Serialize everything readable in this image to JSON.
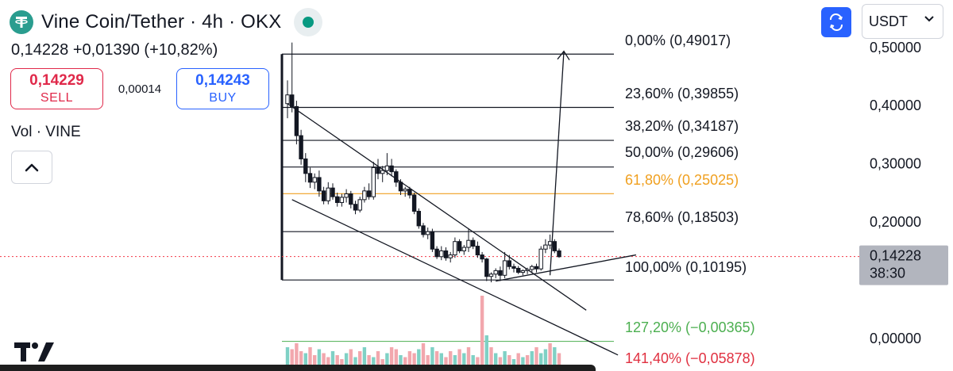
{
  "header": {
    "title": "Vine Coin/Tether · 4h · OKX",
    "last_price": "0,14228",
    "change": "+0,01390",
    "change_pct": "(+10,82%)"
  },
  "trade": {
    "sell_price": "0,14229",
    "sell_label": "SELL",
    "spread": "0,00014",
    "buy_price": "0,14243",
    "buy_label": "BUY"
  },
  "volume_label": "Vol · VINE",
  "currency": "USDT",
  "icons": [
    "tether-logo-icon",
    "status-dot-icon",
    "chevron-up-icon",
    "camera-icon",
    "chevron-down-icon",
    "tradingview-logo-icon"
  ],
  "colors": {
    "up": "#089981",
    "down": "#f23645",
    "sell": "#e0294a",
    "buy": "#2962ff",
    "fib_618": "#f0a020",
    "fib_ext1": "#4caf50",
    "fib_ext2": "#e03040",
    "price_tag": "#b2b5be",
    "vol_up": "#7fd1c5",
    "vol_down": "#f2a7ad"
  },
  "chart_data": {
    "type": "candlestick",
    "y_axis": {
      "ticks": [
        0.5,
        0.4,
        0.3,
        0.2,
        0.0
      ],
      "tick_labels": [
        "0,50000",
        "0,40000",
        "0,30000",
        "0,20000",
        "0,00000"
      ]
    },
    "price_tag": {
      "price": "0,14228",
      "countdown": "38:30",
      "value": 0.14228
    },
    "fib_levels": [
      {
        "pct": 0.0,
        "price": 0.49017,
        "label": "0,00% (0,49017)",
        "color": "#131722"
      },
      {
        "pct": 23.6,
        "price": 0.39855,
        "label": "23,60% (0,39855)",
        "color": "#131722"
      },
      {
        "pct": 38.2,
        "price": 0.34187,
        "label": "38,20% (0,34187)",
        "color": "#131722"
      },
      {
        "pct": 50.0,
        "price": 0.29606,
        "label": "50,00% (0,29606)",
        "color": "#131722"
      },
      {
        "pct": 61.8,
        "price": 0.25025,
        "label": "61,80% (0,25025)",
        "color": "#f0a020"
      },
      {
        "pct": 78.6,
        "price": 0.18503,
        "label": "78,60% (0,18503)",
        "color": "#131722"
      },
      {
        "pct": 100.0,
        "price": 0.10195,
        "label": "100,00% (0,10195)",
        "color": "#131722"
      },
      {
        "pct": 127.2,
        "price": -0.00365,
        "label": "127,20% (−0,00365)",
        "color": "#4caf50"
      },
      {
        "pct": 141.4,
        "price": -0.05878,
        "label": "141,40% (−0,05878)",
        "color": "#e03040"
      }
    ],
    "candles": [
      [
        0.405,
        0.445,
        0.38,
        0.42
      ],
      [
        0.42,
        0.51,
        0.39,
        0.4
      ],
      [
        0.4,
        0.41,
        0.335,
        0.35
      ],
      [
        0.35,
        0.36,
        0.3,
        0.31
      ],
      [
        0.31,
        0.32,
        0.27,
        0.285
      ],
      [
        0.285,
        0.295,
        0.26,
        0.27
      ],
      [
        0.27,
        0.285,
        0.258,
        0.278
      ],
      [
        0.278,
        0.29,
        0.245,
        0.255
      ],
      [
        0.255,
        0.262,
        0.232,
        0.238
      ],
      [
        0.238,
        0.27,
        0.232,
        0.26
      ],
      [
        0.26,
        0.268,
        0.24,
        0.245
      ],
      [
        0.245,
        0.252,
        0.228,
        0.235
      ],
      [
        0.235,
        0.25,
        0.228,
        0.244
      ],
      [
        0.244,
        0.258,
        0.235,
        0.25
      ],
      [
        0.25,
        0.255,
        0.225,
        0.232
      ],
      [
        0.232,
        0.238,
        0.215,
        0.222
      ],
      [
        0.222,
        0.245,
        0.218,
        0.24
      ],
      [
        0.24,
        0.262,
        0.235,
        0.255
      ],
      [
        0.255,
        0.268,
        0.24,
        0.245
      ],
      [
        0.245,
        0.305,
        0.24,
        0.295
      ],
      [
        0.295,
        0.31,
        0.275,
        0.285
      ],
      [
        0.285,
        0.298,
        0.27,
        0.29
      ],
      [
        0.29,
        0.32,
        0.282,
        0.298
      ],
      [
        0.298,
        0.31,
        0.28,
        0.288
      ],
      [
        0.288,
        0.292,
        0.262,
        0.27
      ],
      [
        0.27,
        0.275,
        0.248,
        0.255
      ],
      [
        0.255,
        0.262,
        0.245,
        0.258
      ],
      [
        0.258,
        0.262,
        0.242,
        0.248
      ],
      [
        0.248,
        0.252,
        0.215,
        0.22
      ],
      [
        0.22,
        0.225,
        0.19,
        0.195
      ],
      [
        0.195,
        0.2,
        0.175,
        0.18
      ],
      [
        0.18,
        0.192,
        0.172,
        0.185
      ],
      [
        0.185,
        0.19,
        0.15,
        0.155
      ],
      [
        0.155,
        0.16,
        0.138,
        0.142
      ],
      [
        0.142,
        0.16,
        0.136,
        0.152
      ],
      [
        0.152,
        0.158,
        0.135,
        0.14
      ],
      [
        0.14,
        0.15,
        0.132,
        0.145
      ],
      [
        0.145,
        0.175,
        0.14,
        0.168
      ],
      [
        0.168,
        0.172,
        0.148,
        0.152
      ],
      [
        0.152,
        0.162,
        0.145,
        0.158
      ],
      [
        0.158,
        0.19,
        0.15,
        0.17
      ],
      [
        0.17,
        0.175,
        0.155,
        0.16
      ],
      [
        0.16,
        0.168,
        0.14,
        0.145
      ],
      [
        0.145,
        0.15,
        0.132,
        0.138
      ],
      [
        0.138,
        0.14,
        0.1,
        0.108
      ],
      [
        0.108,
        0.115,
        0.098,
        0.112
      ],
      [
        0.112,
        0.122,
        0.105,
        0.118
      ],
      [
        0.118,
        0.125,
        0.1,
        0.11
      ],
      [
        0.11,
        0.15,
        0.105,
        0.135
      ],
      [
        0.135,
        0.145,
        0.12,
        0.125
      ],
      [
        0.125,
        0.13,
        0.115,
        0.122
      ],
      [
        0.122,
        0.126,
        0.112,
        0.115
      ],
      [
        0.115,
        0.12,
        0.11,
        0.118
      ],
      [
        0.118,
        0.123,
        0.112,
        0.12
      ],
      [
        0.12,
        0.128,
        0.115,
        0.125
      ],
      [
        0.125,
        0.13,
        0.115,
        0.121
      ],
      [
        0.121,
        0.16,
        0.118,
        0.155
      ],
      [
        0.155,
        0.172,
        0.148,
        0.162
      ],
      [
        0.162,
        0.18,
        0.155,
        0.168
      ],
      [
        0.168,
        0.172,
        0.148,
        0.152
      ],
      [
        0.152,
        0.156,
        0.14,
        0.142
      ]
    ],
    "volumes": [
      [
        0.6,
        "up"
      ],
      [
        0.55,
        "down"
      ],
      [
        0.7,
        "down"
      ],
      [
        0.5,
        "down"
      ],
      [
        0.45,
        "up"
      ],
      [
        0.6,
        "down"
      ],
      [
        0.4,
        "down"
      ],
      [
        0.55,
        "up"
      ],
      [
        0.45,
        "down"
      ],
      [
        0.35,
        "down"
      ],
      [
        0.5,
        "up"
      ],
      [
        0.4,
        "down"
      ],
      [
        0.3,
        "down"
      ],
      [
        0.45,
        "up"
      ],
      [
        0.55,
        "down"
      ],
      [
        0.35,
        "up"
      ],
      [
        0.5,
        "down"
      ],
      [
        0.6,
        "up"
      ],
      [
        0.4,
        "down"
      ],
      [
        0.35,
        "up"
      ],
      [
        0.5,
        "down"
      ],
      [
        0.3,
        "down"
      ],
      [
        0.45,
        "up"
      ],
      [
        0.6,
        "down"
      ],
      [
        0.55,
        "down"
      ],
      [
        0.4,
        "up"
      ],
      [
        0.35,
        "down"
      ],
      [
        0.5,
        "down"
      ],
      [
        0.45,
        "down"
      ],
      [
        0.55,
        "up"
      ],
      [
        0.7,
        "down"
      ],
      [
        0.4,
        "down"
      ],
      [
        0.6,
        "up"
      ],
      [
        0.5,
        "down"
      ],
      [
        0.45,
        "up"
      ],
      [
        0.35,
        "down"
      ],
      [
        0.5,
        "down"
      ],
      [
        0.4,
        "up"
      ],
      [
        0.55,
        "down"
      ],
      [
        0.45,
        "up"
      ],
      [
        0.6,
        "down"
      ],
      [
        0.4,
        "up"
      ],
      [
        0.35,
        "down"
      ],
      [
        1.9,
        "down"
      ],
      [
        0.9,
        "up"
      ],
      [
        0.6,
        "down"
      ],
      [
        0.45,
        "up"
      ],
      [
        0.35,
        "down"
      ],
      [
        0.5,
        "up"
      ],
      [
        0.4,
        "down"
      ],
      [
        0.3,
        "up"
      ],
      [
        0.45,
        "down"
      ],
      [
        0.35,
        "up"
      ],
      [
        0.4,
        "down"
      ],
      [
        0.5,
        "up"
      ],
      [
        0.6,
        "down"
      ],
      [
        0.45,
        "up"
      ],
      [
        0.55,
        "up"
      ],
      [
        0.7,
        "down"
      ],
      [
        0.6,
        "up"
      ],
      [
        0.45,
        "down"
      ]
    ],
    "trendlines": [
      {
        "name": "upper-trendline",
        "from": {
          "i": 0,
          "v": 0.405
        },
        "to": {
          "i": 66,
          "v": 0.05
        }
      },
      {
        "name": "lower-trendline",
        "from": {
          "i": 1,
          "v": 0.24
        },
        "to": {
          "i": 73,
          "v": -0.027
        }
      },
      {
        "name": "breakout-support",
        "from": {
          "i": 46,
          "v": 0.1
        },
        "to": {
          "i": 77,
          "v": 0.145
        }
      }
    ],
    "target_arrow": {
      "from": {
        "i": 58,
        "v": 0.11
      },
      "to": {
        "i": 60,
        "v": 0.495
      }
    }
  }
}
